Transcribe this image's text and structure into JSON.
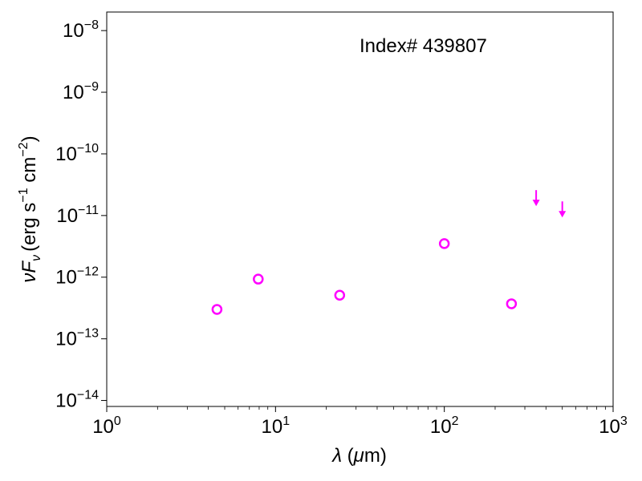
{
  "chart_data": {
    "type": "scatter",
    "annotation": "Index# 439807",
    "xlabel": {
      "sym": "λ",
      "unit_open": " (",
      "unit_mu": "μ",
      "unit_rest": "m)"
    },
    "ylabel": {
      "pre": "(erg s",
      "exp1": "−1",
      "mid": " cm",
      "exp2": "−2",
      "post": ")"
    },
    "x_scale": "log",
    "y_scale": "log",
    "xlim": [
      1,
      1000
    ],
    "ylim": [
      8e-15,
      2e-08
    ],
    "grid": false,
    "x_ticks": [
      {
        "value": 1,
        "base": "10",
        "exp": "0"
      },
      {
        "value": 10,
        "base": "10",
        "exp": "1"
      },
      {
        "value": 100,
        "base": "10",
        "exp": "2"
      },
      {
        "value": 1000,
        "base": "10",
        "exp": "3"
      }
    ],
    "y_ticks": [
      {
        "value": 1e-08,
        "base": "10",
        "exp": "−8"
      },
      {
        "value": 1e-09,
        "base": "10",
        "exp": "−9"
      },
      {
        "value": 1e-10,
        "base": "10",
        "exp": "−10"
      },
      {
        "value": 1e-11,
        "base": "10",
        "exp": "−11"
      },
      {
        "value": 1e-12,
        "base": "10",
        "exp": "−12"
      },
      {
        "value": 1e-13,
        "base": "10",
        "exp": "−13"
      },
      {
        "value": 1e-14,
        "base": "10",
        "exp": "−14"
      }
    ],
    "series": [
      {
        "marker": "open-circle",
        "color": "#ff00ff",
        "points": [
          {
            "x": 4.5,
            "y": 3e-13
          },
          {
            "x": 7.9,
            "y": 9.3e-13
          },
          {
            "x": 24,
            "y": 5.1e-13
          },
          {
            "x": 100,
            "y": 3.5e-12
          },
          {
            "x": 250,
            "y": 3.7e-13
          }
        ]
      },
      {
        "marker": "upper-limit-arrow",
        "color": "#ff00ff",
        "points": [
          {
            "x": 350,
            "y": 1.6e-11
          },
          {
            "x": 500,
            "y": 1.05e-11
          }
        ]
      }
    ]
  }
}
